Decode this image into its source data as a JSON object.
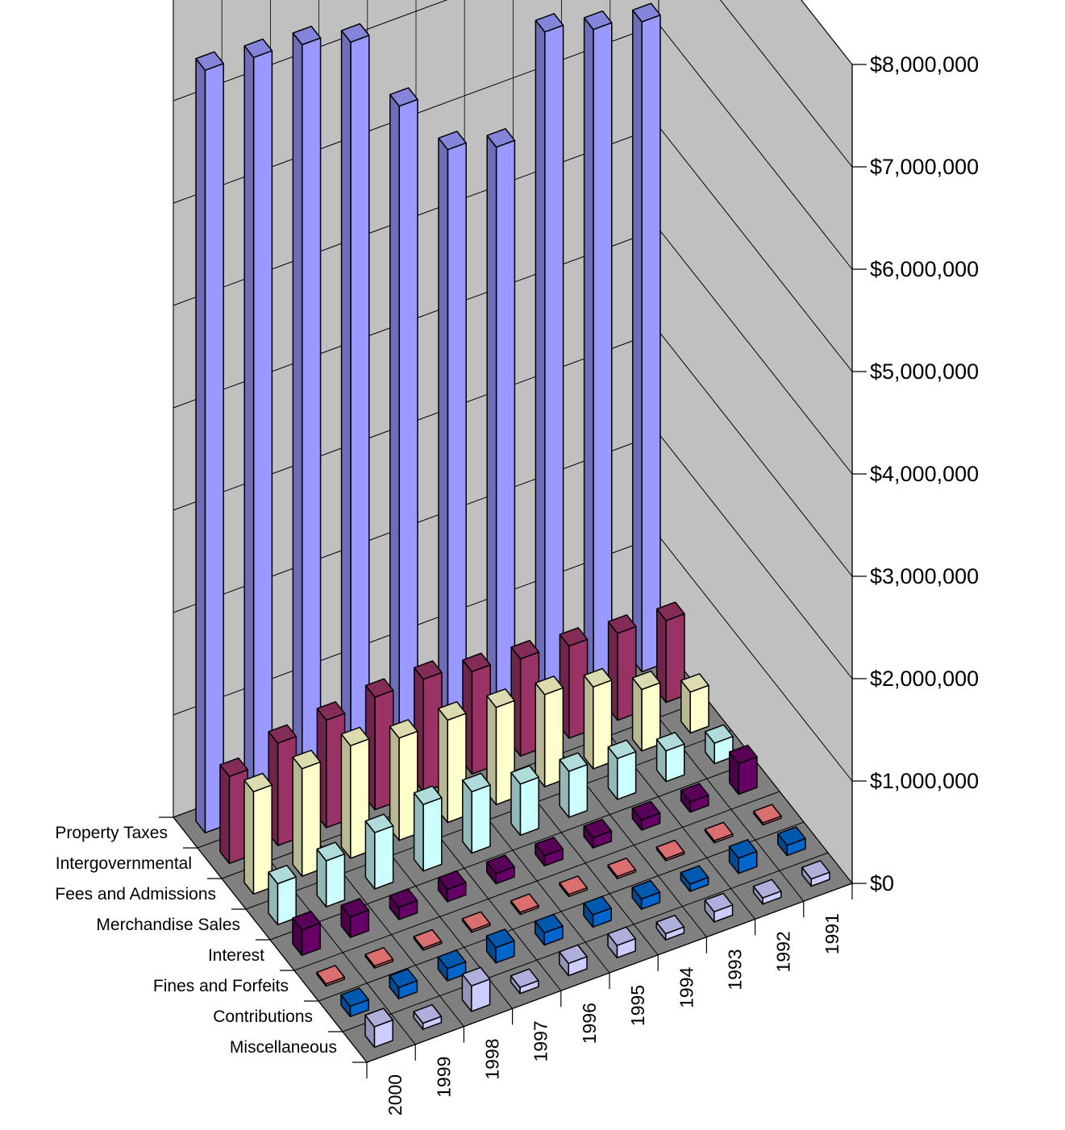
{
  "chart_data": {
    "type": "bar",
    "subtype": "3d-column",
    "title": "",
    "xlabel": "",
    "ylabel": "",
    "categories": [
      "2000",
      "1999",
      "1998",
      "1997",
      "1996",
      "1995",
      "1994",
      "1993",
      "1992",
      "1991"
    ],
    "yticks": [
      "$0",
      "$1,000,000",
      "$2,000,000",
      "$3,000,000",
      "$4,000,000",
      "$5,000,000",
      "$6,000,000",
      "$7,000,000",
      "$8,000,000"
    ],
    "ylim": [
      0,
      8000000
    ],
    "grid": true,
    "legend": "none",
    "series": [
      {
        "name": "Property Taxes",
        "color": "#9999ff",
        "values": [
          7450000,
          7400000,
          7350000,
          7200000,
          6400000,
          5800000,
          5650000,
          6600000,
          6450000,
          6350000
        ]
      },
      {
        "name": "Intergovernmental",
        "color": "#993366",
        "values": [
          850000,
          1000000,
          1050000,
          1100000,
          1100000,
          1000000,
          950000,
          900000,
          850000,
          800000
        ]
      },
      {
        "name": "Fees and Admissions",
        "color": "#ffffcc",
        "values": [
          1000000,
          1050000,
          1100000,
          1000000,
          1000000,
          950000,
          900000,
          800000,
          600000,
          400000
        ]
      },
      {
        "name": "Merchandise Sales",
        "color": "#ccffff",
        "values": [
          400000,
          450000,
          550000,
          650000,
          600000,
          500000,
          450000,
          400000,
          300000,
          200000
        ]
      },
      {
        "name": "Interest",
        "color": "#660066",
        "values": [
          250000,
          200000,
          120000,
          120000,
          100000,
          100000,
          100000,
          100000,
          100000,
          300000
        ]
      },
      {
        "name": "Fines and Forfeits",
        "color": "#ff8080",
        "values": [
          20000,
          20000,
          20000,
          20000,
          20000,
          20000,
          20000,
          20000,
          20000,
          20000
        ]
      },
      {
        "name": "Contributions",
        "color": "#0066cc",
        "values": [
          100000,
          110000,
          120000,
          150000,
          120000,
          120000,
          100000,
          70000,
          150000,
          100000
        ]
      },
      {
        "name": "Miscellaneous",
        "color": "#ccccff",
        "values": [
          200000,
          60000,
          250000,
          60000,
          120000,
          120000,
          60000,
          100000,
          60000,
          70000
        ]
      }
    ]
  }
}
